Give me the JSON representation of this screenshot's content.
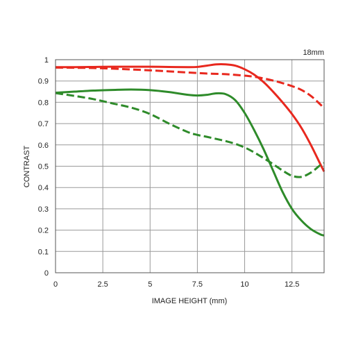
{
  "chart_data": {
    "type": "line",
    "title": "18mm",
    "xlabel": "IMAGE HEIGHT (mm)",
    "ylabel": "CONTRAST",
    "xlim": [
      0,
      14.2
    ],
    "ylim": [
      0,
      1
    ],
    "x_ticks": [
      0,
      2.5,
      5,
      7.5,
      10,
      12.5
    ],
    "y_ticks": [
      0,
      0.1,
      0.2,
      0.3,
      0.4,
      0.5,
      0.6,
      0.7,
      0.8,
      0.9,
      1
    ],
    "x_tick_labels": [
      "0",
      "2.5",
      "5",
      "7.5",
      "10",
      "12.5"
    ],
    "y_tick_labels": [
      "0",
      "0.1",
      "0.2",
      "0.3",
      "0.4",
      "0.5",
      "0.6",
      "0.7",
      "0.8",
      "0.9",
      "1"
    ],
    "grid": true,
    "series": [
      {
        "color": "#e8281e",
        "dash": "solid",
        "x": [
          0,
          1,
          2,
          3,
          4,
          5,
          6,
          7,
          7.5,
          8,
          8.5,
          9,
          9.5,
          10,
          10.5,
          11,
          11.5,
          12,
          12.5,
          13,
          13.5,
          14,
          14.2
        ],
        "y": [
          0.965,
          0.965,
          0.966,
          0.967,
          0.967,
          0.967,
          0.966,
          0.965,
          0.966,
          0.972,
          0.978,
          0.978,
          0.972,
          0.955,
          0.93,
          0.895,
          0.85,
          0.8,
          0.745,
          0.68,
          0.6,
          0.51,
          0.475
        ]
      },
      {
        "color": "#e8281e",
        "dash": "dashed",
        "x": [
          0,
          1,
          2,
          3,
          4,
          5,
          6,
          7,
          8,
          9,
          10,
          10.5,
          11,
          11.5,
          12,
          12.5,
          13,
          13.5,
          14,
          14.2
        ],
        "y": [
          0.963,
          0.962,
          0.961,
          0.958,
          0.954,
          0.95,
          0.945,
          0.94,
          0.935,
          0.932,
          0.925,
          0.92,
          0.912,
          0.902,
          0.89,
          0.876,
          0.858,
          0.83,
          0.79,
          0.77
        ]
      },
      {
        "color": "#2e8b2a",
        "dash": "solid",
        "x": [
          0,
          1,
          2,
          3,
          4,
          5,
          6,
          7,
          7.5,
          8,
          8.5,
          9,
          9.5,
          10,
          10.5,
          11,
          11.5,
          12,
          12.5,
          13,
          13.5,
          14,
          14.2
        ],
        "y": [
          0.845,
          0.85,
          0.855,
          0.858,
          0.86,
          0.857,
          0.848,
          0.835,
          0.832,
          0.835,
          0.842,
          0.838,
          0.81,
          0.75,
          0.67,
          0.58,
          0.48,
          0.38,
          0.3,
          0.245,
          0.205,
          0.18,
          0.175
        ]
      },
      {
        "color": "#2e8b2a",
        "dash": "dashed",
        "x": [
          0,
          1,
          2,
          3,
          4,
          5,
          6,
          7,
          7.5,
          8,
          8.5,
          9,
          9.5,
          10,
          10.5,
          11,
          11.5,
          12,
          12.5,
          13,
          13.5,
          14,
          14.2
        ],
        "y": [
          0.843,
          0.83,
          0.815,
          0.795,
          0.775,
          0.745,
          0.7,
          0.66,
          0.647,
          0.638,
          0.628,
          0.618,
          0.605,
          0.588,
          0.565,
          0.538,
          0.51,
          0.48,
          0.455,
          0.45,
          0.47,
          0.505,
          0.515
        ]
      }
    ]
  }
}
